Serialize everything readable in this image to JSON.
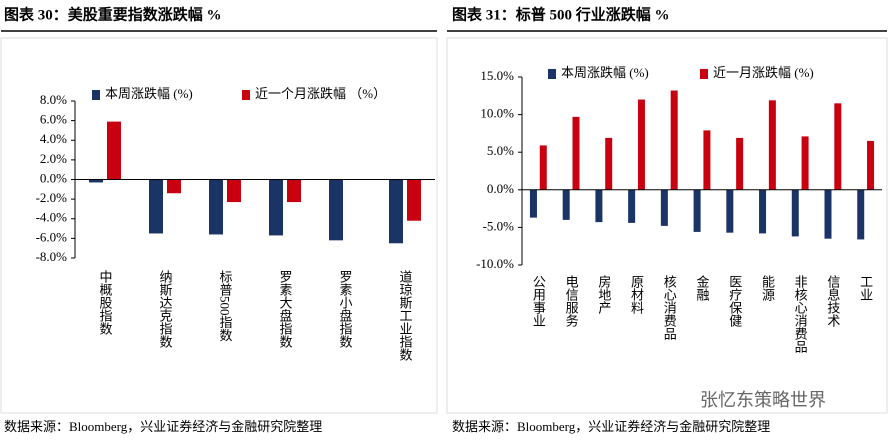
{
  "chart_data": [
    {
      "type": "bar",
      "title": "图表 30：美股重要指数涨跌幅 %",
      "categories": [
        "中概股指数",
        "纳斯达克指数",
        "标普500指数",
        "罗素大盘指数",
        "罗素小盘指数",
        "道琼斯工业指数"
      ],
      "series": [
        {
          "name": "本周涨跌幅 (%)",
          "color": "#1a3565",
          "values": [
            -0.3,
            -5.5,
            -5.6,
            -5.7,
            -6.2,
            -6.5
          ]
        },
        {
          "name": "近一个月涨跌幅 （%）",
          "color": "#c8000f",
          "values": [
            5.9,
            -1.4,
            -2.3,
            -2.3,
            0,
            -4.2
          ]
        }
      ],
      "ylim": [
        -8,
        8
      ],
      "yticks": [
        {
          "value": -8,
          "label": "-8.0%"
        },
        {
          "value": -6,
          "label": "-6.0%"
        },
        {
          "value": -4,
          "label": "-4.0%"
        },
        {
          "value": -2,
          "label": "-2.0%"
        },
        {
          "value": 0,
          "label": "0.0%"
        },
        {
          "value": 2,
          "label": "2.0%"
        },
        {
          "value": 4,
          "label": "4.0%"
        },
        {
          "value": 6,
          "label": "6.0%"
        },
        {
          "value": 8,
          "label": "8.0%"
        }
      ],
      "source": "数据来源：Bloomberg，兴业证券经济与金融研究院整理"
    },
    {
      "type": "bar",
      "title": "图表 31：标普 500 行业涨跌幅 %",
      "categories": [
        "公用事业",
        "电信服务",
        "房地产",
        "原材料",
        "核心消费品",
        "金融",
        "医疗保健",
        "能源",
        "非核心消费品",
        "信息技术",
        "工业"
      ],
      "series": [
        {
          "name": "本周涨跌幅 (%)",
          "color": "#1a3565",
          "values": [
            -3.7,
            -4.0,
            -4.3,
            -4.4,
            -4.8,
            -5.6,
            -5.7,
            -5.8,
            -6.2,
            -6.5,
            -6.6
          ]
        },
        {
          "name": "近一月涨跌幅 (%)",
          "color": "#c8000f",
          "values": [
            5.9,
            9.7,
            6.9,
            12.0,
            13.2,
            7.9,
            6.9,
            11.9,
            7.1,
            11.5,
            6.5
          ]
        }
      ],
      "ylim": [
        -10,
        15
      ],
      "yticks": [
        {
          "value": -10,
          "label": "-10.0%"
        },
        {
          "value": -5,
          "label": "-5.0%"
        },
        {
          "value": 0,
          "label": "0.0%"
        },
        {
          "value": 5,
          "label": "5.0%"
        },
        {
          "value": 10,
          "label": "10.0%"
        },
        {
          "value": 15,
          "label": "15.0%"
        }
      ],
      "source": "数据来源：Bloomberg，兴业证券经济与金融研究院整理"
    }
  ],
  "watermark": "张忆东策略世界"
}
